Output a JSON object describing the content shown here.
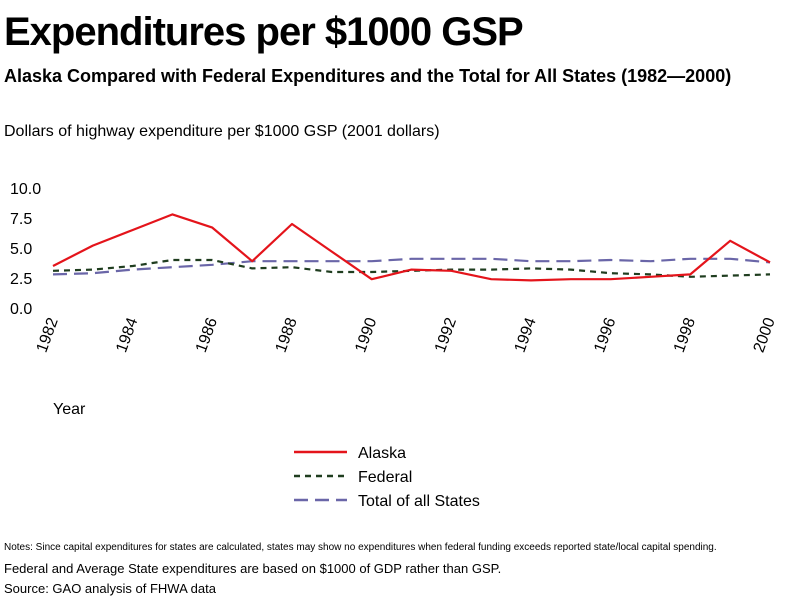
{
  "title": "Expenditures per $1000 GSP",
  "subtitle": "Alaska Compared with Federal Expenditures and the Total for All States (1982—2000)",
  "notes": [
    "Notes: Since capital expenditures for states are calculated, states may show no expenditures when federal funding exceeds reported state/local capital spending.",
    "Federal and Average State expenditures are based on $1000 of GDP rather than GSP.",
    "Source: GAO analysis of FHWA data"
  ],
  "chart_data": {
    "type": "line",
    "ylabel": "Dollars of highway expenditure per $1000 GSP (2001 dollars)",
    "xlabel": "Year",
    "ylim": [
      0,
      10
    ],
    "yticks": [
      "0.0",
      "2.5",
      "5.0",
      "7.5",
      "10.0"
    ],
    "xlim": [
      1982,
      2000
    ],
    "xticks": [
      "1982",
      "1984",
      "1986",
      "1988",
      "1990",
      "1992",
      "1994",
      "1996",
      "1998",
      "2000"
    ],
    "grid": false,
    "legend_position": "bottom-center",
    "x": [
      1982,
      1983,
      1984,
      1985,
      1986,
      1987,
      1988,
      1989,
      1990,
      1991,
      1992,
      1993,
      1994,
      1995,
      1996,
      1997,
      1998,
      1999,
      2000
    ],
    "series": [
      {
        "name": "Alaska",
        "color": "#e4141b",
        "dash": "solid",
        "values": [
          3.5,
          5.2,
          6.5,
          7.8,
          6.7,
          3.9,
          7.0,
          4.7,
          2.4,
          3.2,
          3.1,
          2.4,
          2.3,
          2.4,
          2.4,
          2.6,
          2.8,
          5.6,
          3.8
        ]
      },
      {
        "name": "Federal",
        "color": "#1f3d1f",
        "dash": "dashed",
        "values": [
          3.1,
          3.2,
          3.5,
          4.0,
          4.0,
          3.3,
          3.4,
          3.0,
          3.0,
          3.1,
          3.2,
          3.2,
          3.3,
          3.2,
          2.9,
          2.8,
          2.6,
          2.7,
          2.8
        ]
      },
      {
        "name": "Total of all States",
        "color": "#6a66a8",
        "dash": "longdash",
        "values": [
          2.8,
          2.9,
          3.2,
          3.4,
          3.6,
          3.9,
          3.9,
          3.9,
          3.9,
          4.1,
          4.1,
          4.1,
          3.9,
          3.9,
          4.0,
          3.9,
          4.1,
          4.1,
          3.8
        ]
      }
    ]
  }
}
